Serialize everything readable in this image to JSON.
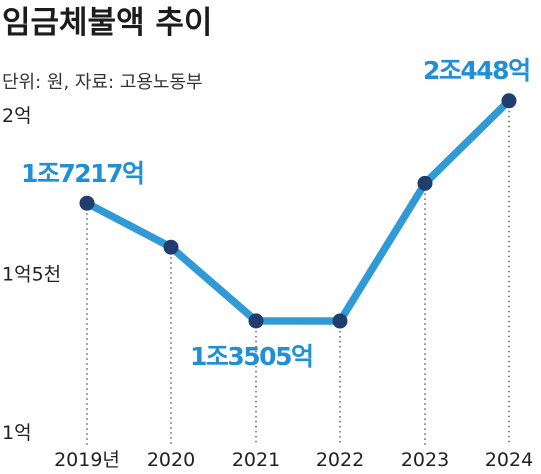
{
  "title": "임금체불액 추이",
  "subtitle": "단위: 원, 자료: 고용노동부",
  "colors": {
    "line": "#2f9ad6",
    "marker": "#1f3e6e",
    "label": "#1f8fd6",
    "guide": "#555555"
  },
  "chart_data": {
    "type": "line",
    "title": "임금체불액 추이",
    "subtitle": "단위: 원, 자료: 고용노동부",
    "categories": [
      "2019년",
      "2020",
      "2021",
      "2022",
      "2023",
      "2024"
    ],
    "series": [
      {
        "values": [
          17217,
          15830,
          13505,
          13500,
          17845,
          20448
        ]
      }
    ],
    "ylim": [
      10000,
      20000
    ],
    "yticks": [
      {
        "value": 10000,
        "label": "1억"
      },
      {
        "value": 15000,
        "label": "1억5천"
      },
      {
        "value": 20000,
        "label": "2억"
      }
    ],
    "data_labels": [
      {
        "index": 0,
        "text": "1조7217억"
      },
      {
        "index": 2,
        "text": "1조3505억"
      },
      {
        "index": 5,
        "text": "2조448억"
      }
    ],
    "grid": false,
    "legend": "none"
  }
}
